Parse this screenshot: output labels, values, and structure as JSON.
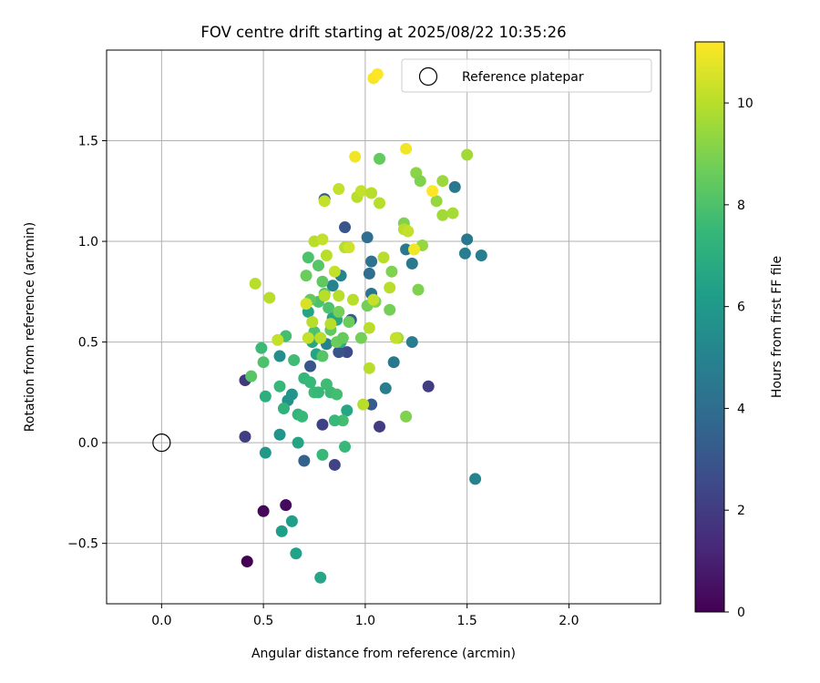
{
  "chart_data": {
    "type": "scatter",
    "title": "FOV centre drift starting at 2025/08/22 10:35:26",
    "xlabel": "Angular distance from reference (arcmin)",
    "ylabel": "Rotation from reference (arcmin)",
    "xlim": [
      -0.27,
      2.45
    ],
    "ylim": [
      -0.8,
      1.95
    ],
    "x_ticks": [
      0.0,
      0.5,
      1.0,
      1.5,
      2.0
    ],
    "x_tick_labels": [
      "0.0",
      "0.5",
      "1.0",
      "1.5",
      "2.0"
    ],
    "y_ticks": [
      -0.5,
      0.0,
      0.5,
      1.0,
      1.5
    ],
    "y_tick_labels": [
      "−0.5",
      "0.0",
      "0.5",
      "1.0",
      "1.5"
    ],
    "grid": true,
    "legend": {
      "placement": "top-right",
      "entries": [
        "Reference platepar"
      ]
    },
    "reference_point": {
      "x": 0.0,
      "y": 0.0,
      "label": "Reference platepar"
    },
    "colorbar": {
      "label": "Hours from first FF file",
      "colormap": "viridis",
      "range": [
        0,
        11.2
      ],
      "ticks": [
        0,
        2,
        4,
        6,
        8,
        10
      ],
      "tick_labels": [
        "0",
        "2",
        "4",
        "6",
        "8",
        "10"
      ]
    },
    "points": [
      [
        0.42,
        -0.59,
        0.0
      ],
      [
        0.5,
        -0.34,
        0.2
      ],
      [
        0.61,
        -0.31,
        0.3
      ],
      [
        0.41,
        0.31,
        1.8
      ],
      [
        0.41,
        0.03,
        2.0
      ],
      [
        1.31,
        0.28,
        2.0
      ],
      [
        1.07,
        0.08,
        2.0
      ],
      [
        0.79,
        0.09,
        2.2
      ],
      [
        0.85,
        -0.11,
        2.3
      ],
      [
        0.91,
        0.45,
        2.6
      ],
      [
        0.87,
        0.45,
        3.0
      ],
      [
        0.73,
        0.38,
        3.0
      ],
      [
        0.93,
        0.61,
        3.2
      ],
      [
        0.9,
        1.07,
        3.0
      ],
      [
        0.8,
        1.21,
        3.0
      ],
      [
        1.03,
        0.19,
        3.2
      ],
      [
        0.7,
        -0.09,
        3.5
      ],
      [
        1.01,
        1.02,
        4.0
      ],
      [
        1.02,
        0.84,
        4.0
      ],
      [
        1.03,
        0.9,
        4.2
      ],
      [
        1.03,
        0.74,
        4.3
      ],
      [
        1.14,
        0.4,
        4.5
      ],
      [
        1.1,
        0.27,
        4.8
      ],
      [
        1.2,
        0.96,
        4.5
      ],
      [
        1.23,
        0.89,
        4.6
      ],
      [
        1.23,
        0.5,
        4.8
      ],
      [
        1.44,
        1.27,
        4.5
      ],
      [
        1.5,
        1.01,
        4.5
      ],
      [
        1.49,
        0.94,
        4.8
      ],
      [
        1.57,
        0.93,
        4.8
      ],
      [
        1.54,
        -0.18,
        5.0
      ],
      [
        0.88,
        0.83,
        5.0
      ],
      [
        0.84,
        0.78,
        5.0
      ],
      [
        0.81,
        0.49,
        5.0
      ],
      [
        0.58,
        0.43,
        5.5
      ],
      [
        0.62,
        0.21,
        5.6
      ],
      [
        0.64,
        0.24,
        5.8
      ],
      [
        0.58,
        0.04,
        5.8
      ],
      [
        0.51,
        -0.05,
        6.0
      ],
      [
        0.59,
        -0.44,
        6.2
      ],
      [
        0.64,
        -0.39,
        6.2
      ],
      [
        0.66,
        -0.55,
        6.4
      ],
      [
        0.78,
        -0.67,
        6.6
      ],
      [
        0.67,
        0.0,
        6.5
      ],
      [
        0.72,
        0.65,
        6.5
      ],
      [
        0.74,
        0.5,
        6.6
      ],
      [
        0.76,
        0.44,
        6.5
      ],
      [
        0.84,
        0.62,
        6.6
      ],
      [
        0.86,
        0.61,
        6.7
      ],
      [
        0.88,
        0.5,
        6.8
      ],
      [
        0.91,
        0.16,
        6.6
      ],
      [
        0.51,
        0.23,
        7.0
      ],
      [
        0.6,
        0.17,
        7.2
      ],
      [
        0.67,
        0.14,
        7.3
      ],
      [
        0.7,
        0.32,
        7.4
      ],
      [
        0.69,
        0.13,
        7.5
      ],
      [
        0.73,
        0.3,
        7.5
      ],
      [
        0.75,
        0.25,
        7.6
      ],
      [
        0.77,
        0.25,
        7.5
      ],
      [
        0.79,
        -0.06,
        7.5
      ],
      [
        0.81,
        0.29,
        7.7
      ],
      [
        0.83,
        0.25,
        7.6
      ],
      [
        0.86,
        0.24,
        7.8
      ],
      [
        0.89,
        0.11,
        7.8
      ],
      [
        0.85,
        0.11,
        7.5
      ],
      [
        0.9,
        -0.02,
        7.5
      ],
      [
        0.58,
        0.28,
        7.5
      ],
      [
        0.65,
        0.41,
        7.7
      ],
      [
        0.61,
        0.53,
        7.8
      ],
      [
        0.49,
        0.47,
        7.6
      ],
      [
        0.5,
        0.4,
        8.0
      ],
      [
        0.44,
        0.33,
        8.2
      ],
      [
        0.72,
        0.92,
        8.0
      ],
      [
        0.77,
        0.88,
        8.2
      ],
      [
        0.79,
        0.8,
        8.4
      ],
      [
        0.82,
        0.67,
        8.0
      ],
      [
        0.8,
        0.74,
        8.2
      ],
      [
        0.77,
        0.7,
        8.0
      ],
      [
        0.75,
        0.55,
        8.0
      ],
      [
        0.78,
        0.52,
        8.2
      ],
      [
        0.79,
        0.43,
        8.2
      ],
      [
        0.83,
        0.56,
        8.4
      ],
      [
        0.86,
        0.5,
        8.6
      ],
      [
        0.89,
        0.52,
        8.5
      ],
      [
        0.92,
        0.6,
        8.6
      ],
      [
        0.98,
        0.52,
        8.8
      ],
      [
        1.01,
        0.68,
        8.8
      ],
      [
        1.05,
        0.7,
        9.0
      ],
      [
        1.07,
        1.41,
        8.5
      ],
      [
        1.12,
        0.66,
        8.8
      ],
      [
        1.13,
        0.85,
        9.0
      ],
      [
        1.16,
        0.52,
        9.5
      ],
      [
        1.19,
        1.09,
        9.0
      ],
      [
        1.2,
        0.13,
        9.0
      ],
      [
        1.25,
        1.34,
        9.2
      ],
      [
        1.27,
        1.3,
        9.0
      ],
      [
        1.26,
        0.76,
        9.0
      ],
      [
        1.28,
        0.98,
        9.4
      ],
      [
        1.35,
        1.2,
        9.4
      ],
      [
        1.38,
        1.13,
        9.6
      ],
      [
        1.38,
        1.3,
        9.5
      ],
      [
        1.43,
        1.14,
        9.7
      ],
      [
        1.5,
        1.43,
        9.6
      ],
      [
        0.71,
        0.83,
        8.6
      ],
      [
        0.73,
        0.71,
        8.5
      ],
      [
        0.87,
        0.65,
        8.8
      ],
      [
        0.46,
        0.79,
        10.0
      ],
      [
        0.53,
        0.72,
        10.0
      ],
      [
        0.57,
        0.51,
        10.2
      ],
      [
        0.71,
        0.69,
        10.5
      ],
      [
        0.72,
        0.52,
        10.2
      ],
      [
        0.74,
        0.6,
        10.0
      ],
      [
        0.75,
        1.0,
        10.0
      ],
      [
        0.78,
        0.52,
        10.0
      ],
      [
        0.79,
        1.01,
        10.2
      ],
      [
        0.8,
        0.73,
        10.0
      ],
      [
        0.8,
        1.2,
        10.2
      ],
      [
        0.81,
        0.93,
        10.0
      ],
      [
        0.83,
        0.59,
        10.0
      ],
      [
        0.85,
        0.85,
        10.2
      ],
      [
        0.87,
        0.73,
        10.0
      ],
      [
        0.87,
        1.26,
        10.2
      ],
      [
        0.9,
        0.97,
        10.0
      ],
      [
        0.92,
        0.97,
        10.4
      ],
      [
        0.94,
        0.71,
        10.0
      ],
      [
        0.96,
        1.22,
        10.0
      ],
      [
        0.98,
        1.25,
        10.2
      ],
      [
        0.99,
        0.19,
        10.0
      ],
      [
        1.02,
        0.37,
        10.0
      ],
      [
        1.03,
        1.24,
        10.0
      ],
      [
        1.04,
        0.71,
        10.2
      ],
      [
        1.07,
        1.19,
        10.0
      ],
      [
        1.09,
        0.92,
        10.0
      ],
      [
        1.12,
        0.77,
        10.0
      ],
      [
        1.15,
        0.52,
        10.2
      ],
      [
        1.19,
        1.06,
        10.0
      ],
      [
        1.21,
        1.05,
        10.2
      ],
      [
        1.02,
        0.57,
        10.0
      ],
      [
        0.95,
        1.42,
        11.0
      ],
      [
        1.04,
        1.81,
        11.1
      ],
      [
        1.06,
        1.83,
        11.2
      ],
      [
        1.2,
        1.46,
        11.0
      ],
      [
        1.24,
        0.96,
        11.0
      ],
      [
        1.33,
        1.25,
        11.2
      ]
    ]
  }
}
